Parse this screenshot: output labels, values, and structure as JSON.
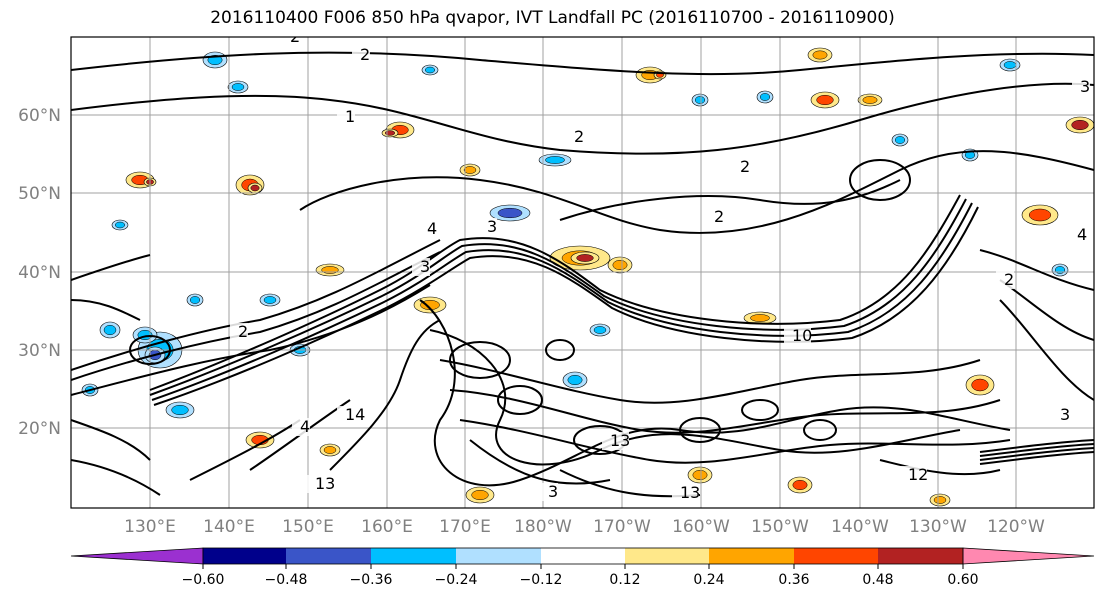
{
  "title": "2016110400 F006 850 hPa qvapor, IVT Landfall PC (2016110700 - 2016110900)",
  "axes": {
    "lat_labels": [
      "60°N",
      "50°N",
      "40°N",
      "30°N",
      "20°N"
    ],
    "lon_labels": [
      "130°E",
      "140°E",
      "150°E",
      "160°E",
      "170°E",
      "180°W",
      "170°W",
      "160°W",
      "150°W",
      "140°W",
      "130°W",
      "120°W"
    ]
  },
  "colorbar": {
    "ticks": [
      "−0.60",
      "−0.48",
      "−0.36",
      "−0.24",
      "−0.12",
      "0.12",
      "0.24",
      "0.36",
      "0.48",
      "0.60"
    ],
    "colors": [
      "#9b30d0",
      "#00008b",
      "#3a55c8",
      "#00bfff",
      "#b0e0ff",
      "#ffffff",
      "#ffe88a",
      "#ffa500",
      "#ff4500",
      "#b22222",
      "#ff88b0"
    ]
  },
  "contour_labels": [
    "2",
    "2",
    "2",
    "2",
    "1",
    "2",
    "2",
    "3",
    "3",
    "4",
    "2",
    "3",
    "10",
    "14",
    "4",
    "13",
    "13",
    "13",
    "12",
    "3",
    "4",
    "3"
  ],
  "colors": {
    "contour": "#000000",
    "grid": "#a0a0a0",
    "axis_label": "#808080"
  }
}
